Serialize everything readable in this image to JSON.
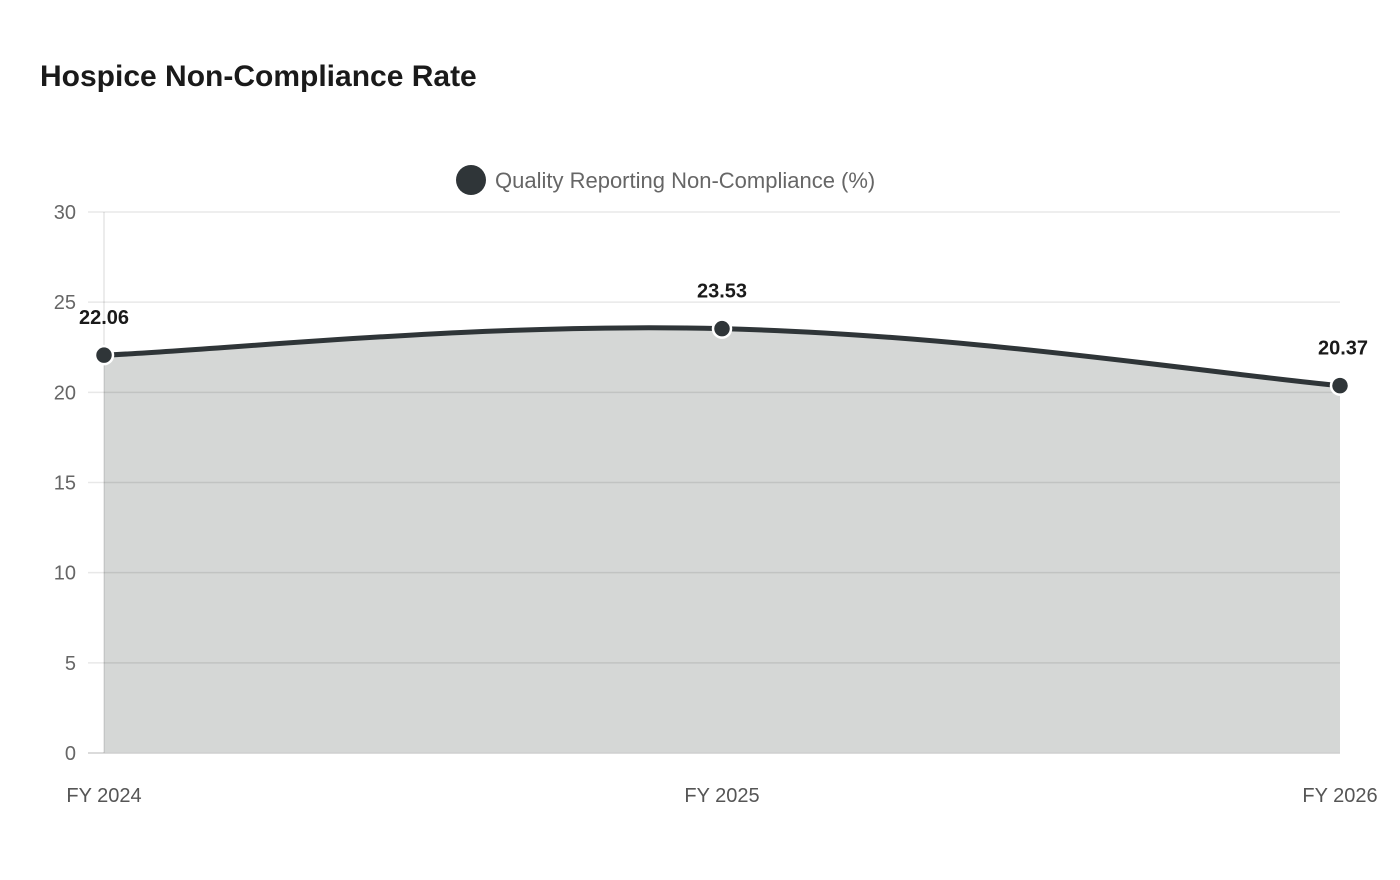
{
  "chart_data": {
    "type": "area",
    "title": "Hospice Non-Compliance Rate",
    "categories": [
      "FY 2024",
      "FY 2025",
      "FY 2026"
    ],
    "series": [
      {
        "name": "Quality Reporting Non-Compliance (%)",
        "values": [
          22.06,
          23.53,
          20.37
        ],
        "color": "#2f3538",
        "fill": "#d5d7d6"
      }
    ],
    "data_labels": [
      "22.06",
      "23.53",
      "20.37"
    ],
    "ylim": [
      0,
      30
    ],
    "yticks": [
      0,
      5,
      10,
      15,
      20,
      25,
      30
    ],
    "grid": true,
    "legend": "top"
  }
}
